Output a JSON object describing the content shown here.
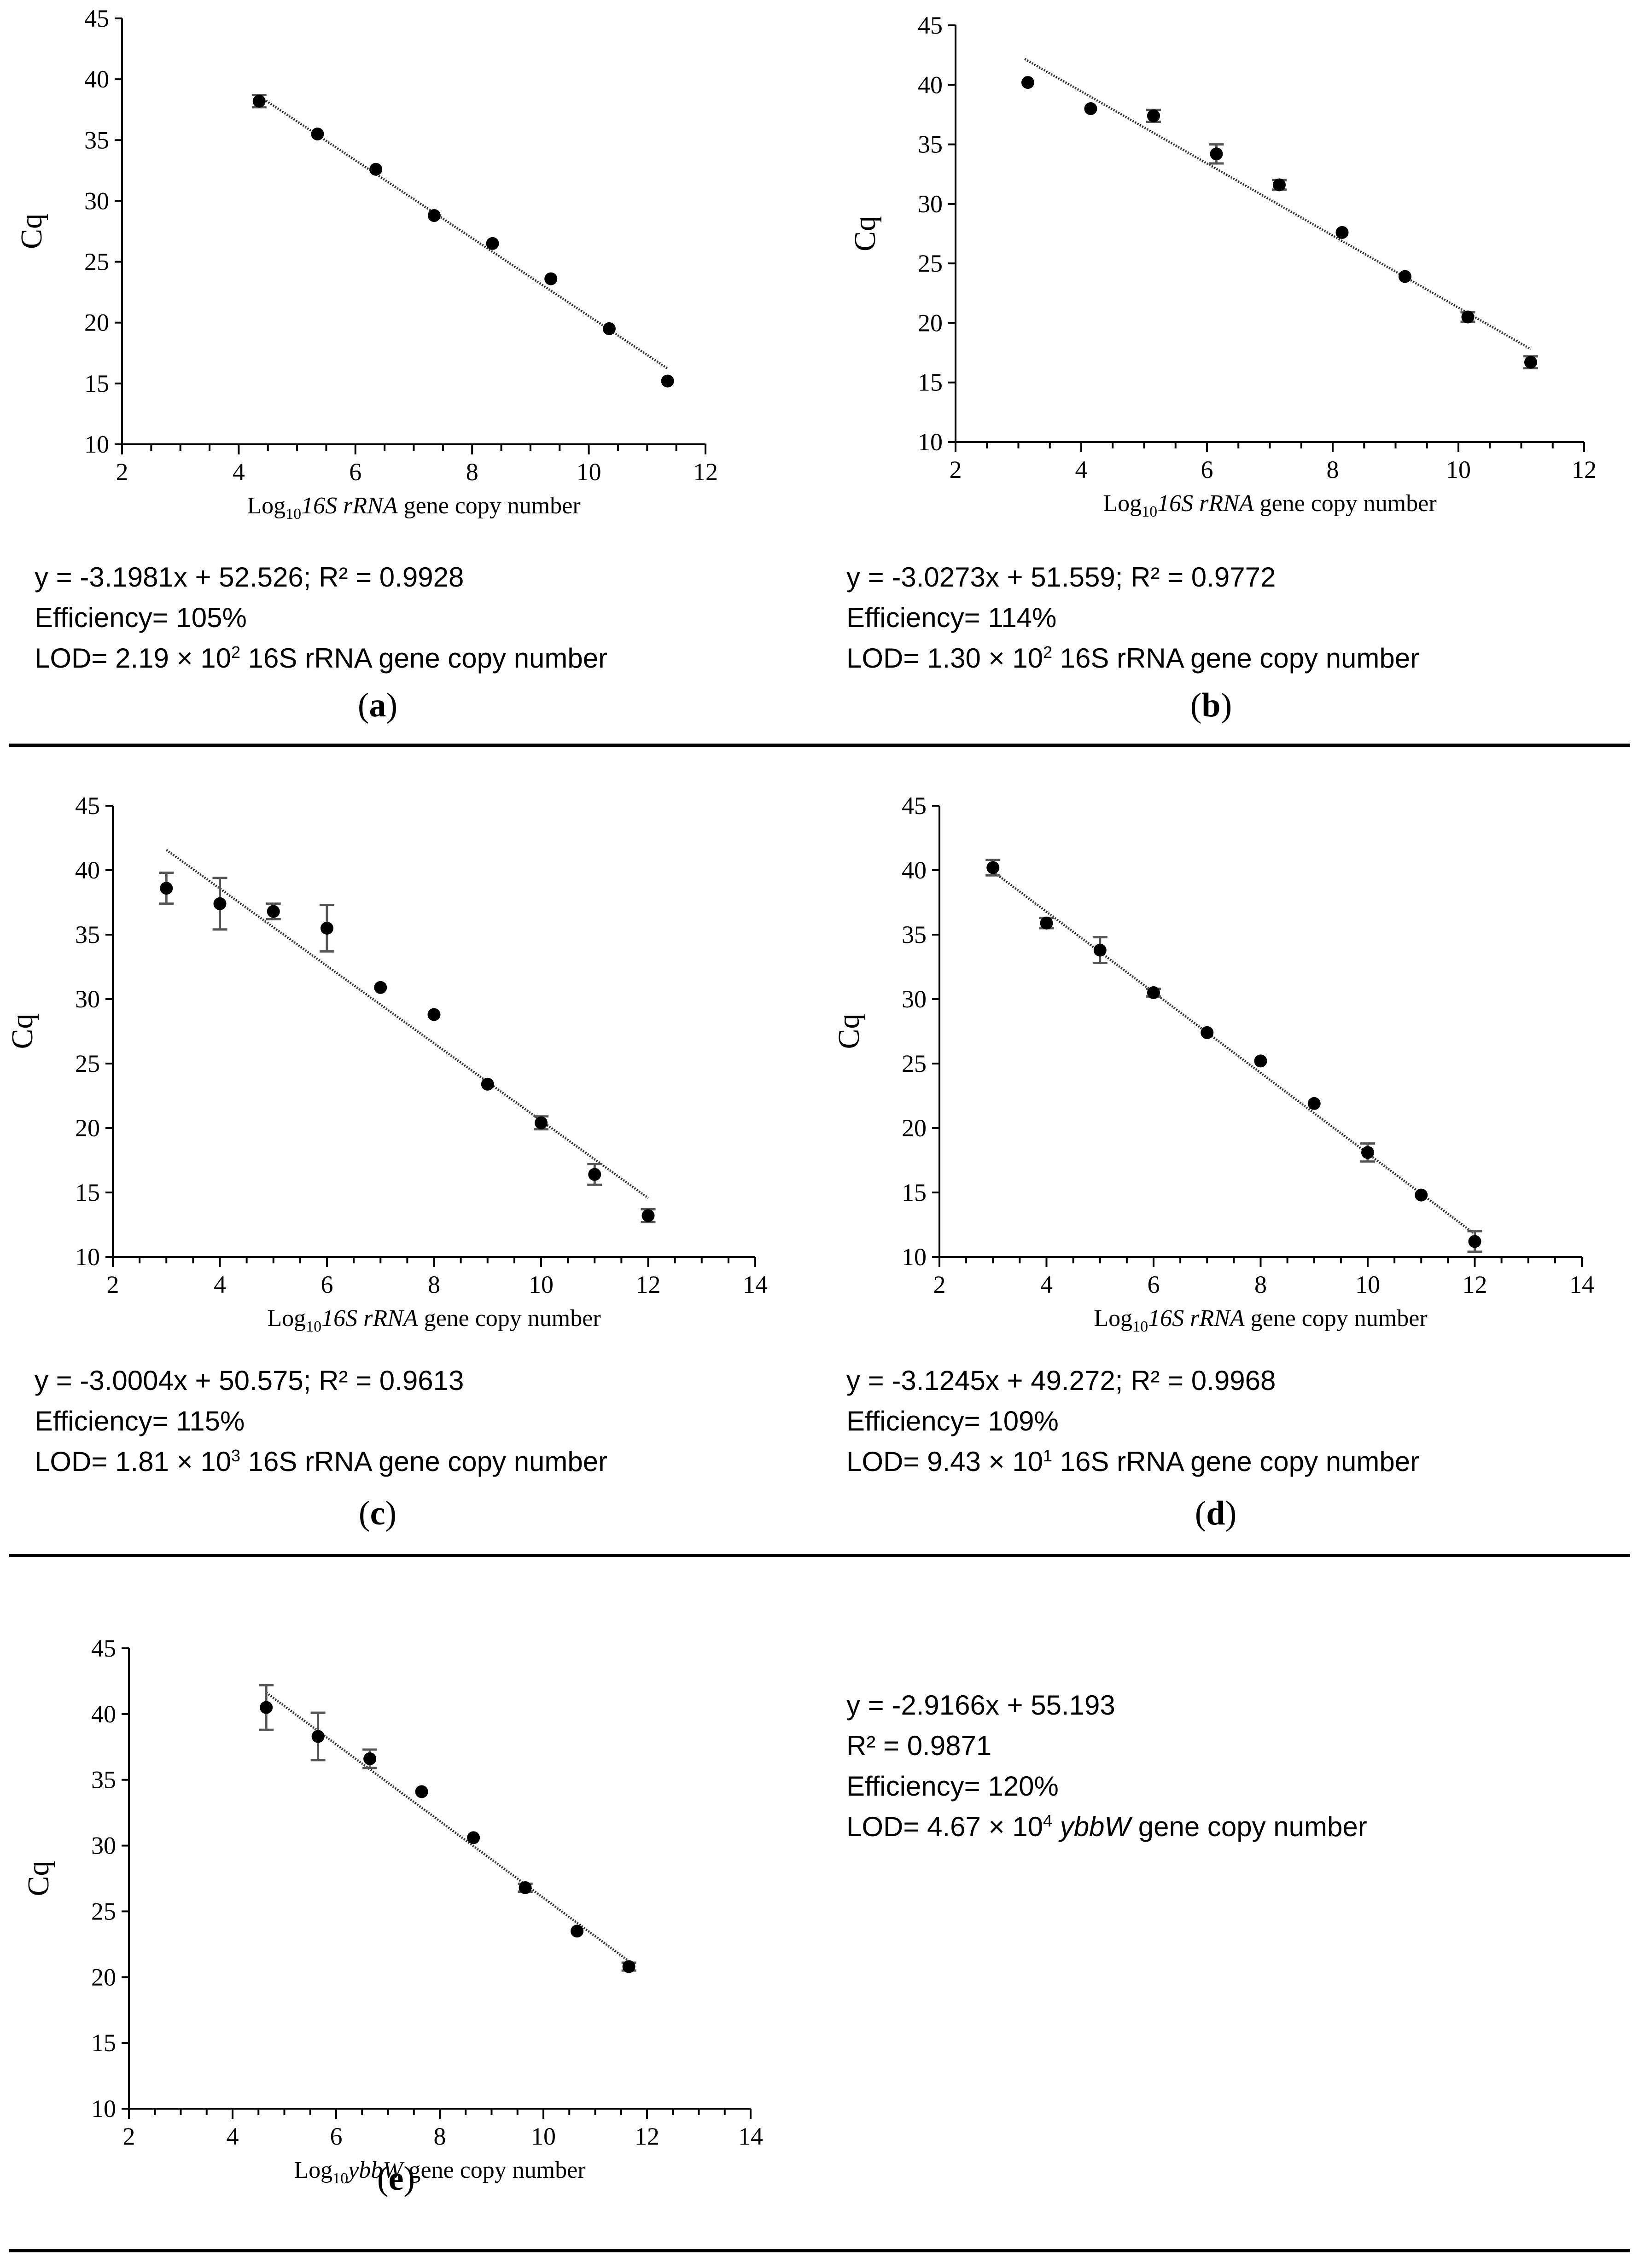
{
  "chart_data": [
    {
      "id": "a",
      "type": "scatter",
      "ylabel": "Cq",
      "xlabel": {
        "prefix": "Log",
        "sub": "10",
        "gene": "16S rRNA",
        "suffix": "gene copy number"
      },
      "xlim": [
        2,
        12
      ],
      "ylim": [
        10,
        45
      ],
      "xticks": [
        2,
        4,
        6,
        8,
        10,
        12
      ],
      "yticks": [
        10,
        15,
        20,
        25,
        30,
        35,
        40,
        45
      ],
      "points": [
        {
          "x": 4.35,
          "y": 38.2,
          "err": 0.5
        },
        {
          "x": 5.35,
          "y": 35.5,
          "err": 0
        },
        {
          "x": 6.35,
          "y": 32.6,
          "err": 0
        },
        {
          "x": 7.35,
          "y": 28.8,
          "err": 0
        },
        {
          "x": 8.35,
          "y": 26.5,
          "err": 0
        },
        {
          "x": 9.35,
          "y": 23.6,
          "err": 0
        },
        {
          "x": 10.35,
          "y": 19.5,
          "err": 0
        },
        {
          "x": 11.35,
          "y": 15.2,
          "err": 0
        }
      ],
      "trend": {
        "slope": -3.1981,
        "intercept": 52.526,
        "x0": 4.35,
        "x1": 11.35
      },
      "annotation": {
        "equation": "y = -3.1981x + 52.526; R² = 0.9928",
        "efficiency": "Efficiency= 105%",
        "lod_prefix": "LOD= 2.19 × 10",
        "lod_exp": "2",
        "lod_suffix": " 16S rRNA gene copy number"
      },
      "label": "a"
    },
    {
      "id": "b",
      "type": "scatter",
      "ylabel": "Cq",
      "xlabel": {
        "prefix": "Log",
        "sub": "10",
        "gene": "16S rRNA",
        "suffix": "gene copy number"
      },
      "xlim": [
        2,
        12
      ],
      "ylim": [
        10,
        45
      ],
      "xticks": [
        2,
        4,
        6,
        8,
        10,
        12
      ],
      "yticks": [
        10,
        15,
        20,
        25,
        30,
        35,
        40,
        45
      ],
      "points": [
        {
          "x": 3.15,
          "y": 40.2,
          "err": 0
        },
        {
          "x": 4.15,
          "y": 38.0,
          "err": 0
        },
        {
          "x": 5.15,
          "y": 37.4,
          "err": 0.5
        },
        {
          "x": 6.15,
          "y": 34.2,
          "err": 0.8
        },
        {
          "x": 7.15,
          "y": 31.6,
          "err": 0.4
        },
        {
          "x": 8.15,
          "y": 27.6,
          "err": 0
        },
        {
          "x": 9.15,
          "y": 23.9,
          "err": 0
        },
        {
          "x": 10.15,
          "y": 20.5,
          "err": 0.4
        },
        {
          "x": 11.15,
          "y": 16.7,
          "err": 0.5
        }
      ],
      "trend": {
        "slope": -3.0273,
        "intercept": 51.559,
        "x0": 3.1,
        "x1": 11.15
      },
      "annotation": {
        "equation": "y = -3.0273x + 51.559; R² = 0.9772",
        "efficiency": "Efficiency= 114%",
        "lod_prefix": "LOD= 1.30 × 10",
        "lod_exp": "2",
        "lod_suffix": " 16S rRNA gene copy number"
      },
      "label": "b"
    },
    {
      "id": "c",
      "type": "scatter",
      "ylabel": "Cq",
      "xlabel": {
        "prefix": "Log",
        "sub": "10",
        "gene": "16S rRNA",
        "suffix": "gene copy number"
      },
      "xlim": [
        2,
        14
      ],
      "ylim": [
        10,
        45
      ],
      "xticks": [
        2,
        4,
        6,
        8,
        10,
        12,
        14
      ],
      "yticks": [
        10,
        15,
        20,
        25,
        30,
        35,
        40,
        45
      ],
      "points": [
        {
          "x": 3.0,
          "y": 38.6,
          "err": 1.2
        },
        {
          "x": 4.0,
          "y": 37.4,
          "err": 2.0
        },
        {
          "x": 5.0,
          "y": 36.8,
          "err": 0.6
        },
        {
          "x": 6.0,
          "y": 35.5,
          "err": 1.8
        },
        {
          "x": 7.0,
          "y": 30.9,
          "err": 0
        },
        {
          "x": 8.0,
          "y": 28.8,
          "err": 0
        },
        {
          "x": 9.0,
          "y": 23.4,
          "err": 0
        },
        {
          "x": 10.0,
          "y": 20.4,
          "err": 0.5
        },
        {
          "x": 11.0,
          "y": 16.4,
          "err": 0.8
        },
        {
          "x": 12.0,
          "y": 13.2,
          "err": 0.5
        }
      ],
      "trend": {
        "slope": -3.0004,
        "intercept": 50.575,
        "x0": 3.0,
        "x1": 12.0
      },
      "annotation": {
        "equation": "y = -3.0004x + 50.575; R² = 0.9613",
        "efficiency": "Efficiency= 115%",
        "lod_prefix": "LOD= 1.81 × 10",
        "lod_exp": "3",
        "lod_suffix": " 16S rRNA gene copy number"
      },
      "label": "c"
    },
    {
      "id": "d",
      "type": "scatter",
      "ylabel": "Cq",
      "xlabel": {
        "prefix": "Log",
        "sub": "10",
        "gene": "16S rRNA",
        "suffix": "gene copy number"
      },
      "xlim": [
        2,
        14
      ],
      "ylim": [
        10,
        45
      ],
      "xticks": [
        2,
        4,
        6,
        8,
        10,
        12,
        14
      ],
      "yticks": [
        10,
        15,
        20,
        25,
        30,
        35,
        40,
        45
      ],
      "points": [
        {
          "x": 3.0,
          "y": 40.2,
          "err": 0.6
        },
        {
          "x": 4.0,
          "y": 35.9,
          "err": 0.4
        },
        {
          "x": 5.0,
          "y": 33.8,
          "err": 1.0
        },
        {
          "x": 6.0,
          "y": 30.5,
          "err": 0.3
        },
        {
          "x": 7.0,
          "y": 27.4,
          "err": 0
        },
        {
          "x": 8.0,
          "y": 25.2,
          "err": 0
        },
        {
          "x": 9.0,
          "y": 21.9,
          "err": 0
        },
        {
          "x": 10.0,
          "y": 18.1,
          "err": 0.7
        },
        {
          "x": 11.0,
          "y": 14.8,
          "err": 0
        },
        {
          "x": 12.0,
          "y": 11.2,
          "err": 0.8
        }
      ],
      "trend": {
        "slope": -3.1245,
        "intercept": 49.272,
        "x0": 3.0,
        "x1": 12.0
      },
      "annotation": {
        "equation": "y = -3.1245x + 49.272; R² = 0.9968",
        "efficiency": "Efficiency= 109%",
        "lod_prefix": "LOD= 9.43 × 10",
        "lod_exp": "1",
        "lod_suffix": " 16S rRNA gene copy number"
      },
      "label": "d"
    },
    {
      "id": "e",
      "type": "scatter",
      "ylabel": "Cq",
      "xlabel": {
        "prefix": "Log",
        "sub": "10",
        "gene": "ybbW",
        "suffix": "gene copy number"
      },
      "xlim": [
        2,
        14
      ],
      "ylim": [
        10,
        45
      ],
      "xticks": [
        2,
        4,
        6,
        8,
        10,
        12,
        14
      ],
      "yticks": [
        10,
        15,
        20,
        25,
        30,
        35,
        40,
        45
      ],
      "points": [
        {
          "x": 4.65,
          "y": 40.5,
          "err": 1.7
        },
        {
          "x": 5.65,
          "y": 38.3,
          "err": 1.8
        },
        {
          "x": 6.65,
          "y": 36.6,
          "err": 0.7
        },
        {
          "x": 7.65,
          "y": 34.1,
          "err": 0
        },
        {
          "x": 8.65,
          "y": 30.6,
          "err": 0
        },
        {
          "x": 9.65,
          "y": 26.8,
          "err": 0.3
        },
        {
          "x": 10.65,
          "y": 23.5,
          "err": 0
        },
        {
          "x": 11.65,
          "y": 20.8,
          "err": 0.3
        }
      ],
      "trend": {
        "slope": -2.9166,
        "intercept": 55.193,
        "x0": 4.65,
        "x1": 11.65
      },
      "annotation": {
        "equation": "y = -2.9166x + 55.193",
        "r2": "R² = 0.9871",
        "efficiency": "Efficiency= 120%",
        "lod_prefix": "LOD= 4.67 × 10",
        "lod_exp": "4",
        "lod_gene": "ybbW",
        "lod_suffix": " gene copy number"
      },
      "label": "e"
    }
  ]
}
